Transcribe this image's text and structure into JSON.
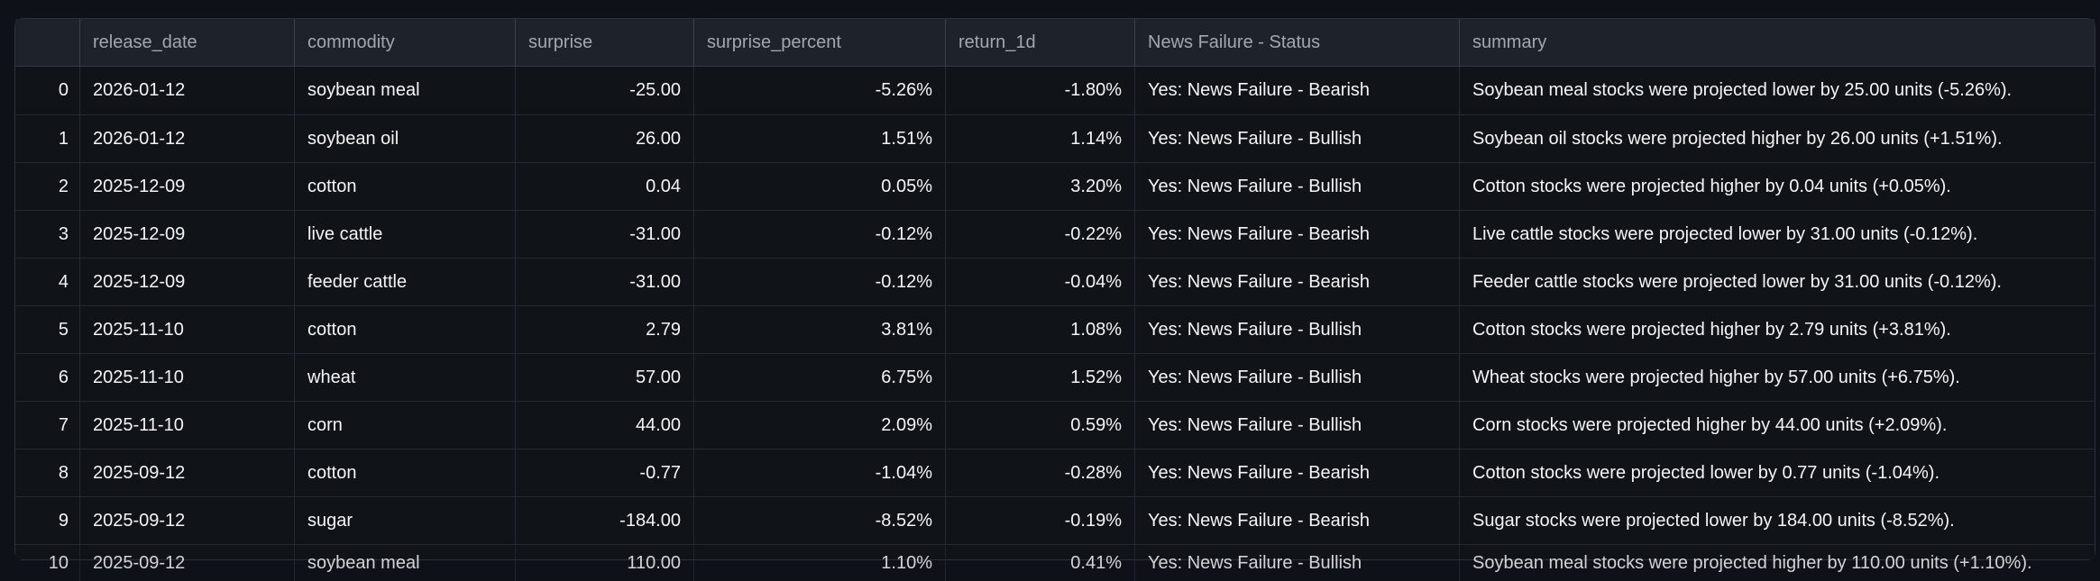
{
  "table": {
    "columns": [
      {
        "id": "idx",
        "label": ""
      },
      {
        "id": "release_date",
        "label": "release_date"
      },
      {
        "id": "commodity",
        "label": "commodity"
      },
      {
        "id": "surprise",
        "label": "surprise"
      },
      {
        "id": "surprise_percent",
        "label": "surprise_percent"
      },
      {
        "id": "return_1d",
        "label": "return_1d"
      },
      {
        "id": "status",
        "label": "News Failure - Status"
      },
      {
        "id": "summary",
        "label": "summary"
      }
    ],
    "rows": [
      {
        "idx": "0",
        "release_date": "2026-01-12",
        "commodity": "soybean meal",
        "surprise": "-25.00",
        "surprise_percent": "-5.26%",
        "return_1d": "-1.80%",
        "status": "Yes: News Failure - Bearish",
        "summary": "Soybean meal stocks were projected lower by 25.00 units (-5.26%)."
      },
      {
        "idx": "1",
        "release_date": "2026-01-12",
        "commodity": "soybean oil",
        "surprise": "26.00",
        "surprise_percent": "1.51%",
        "return_1d": "1.14%",
        "status": "Yes: News Failure - Bullish",
        "summary": "Soybean oil stocks were projected higher by 26.00 units (+1.51%)."
      },
      {
        "idx": "2",
        "release_date": "2025-12-09",
        "commodity": "cotton",
        "surprise": "0.04",
        "surprise_percent": "0.05%",
        "return_1d": "3.20%",
        "status": "Yes: News Failure - Bullish",
        "summary": "Cotton stocks were projected higher by 0.04 units (+0.05%)."
      },
      {
        "idx": "3",
        "release_date": "2025-12-09",
        "commodity": "live cattle",
        "surprise": "-31.00",
        "surprise_percent": "-0.12%",
        "return_1d": "-0.22%",
        "status": "Yes: News Failure - Bearish",
        "summary": "Live cattle stocks were projected lower by 31.00 units (-0.12%)."
      },
      {
        "idx": "4",
        "release_date": "2025-12-09",
        "commodity": "feeder cattle",
        "surprise": "-31.00",
        "surprise_percent": "-0.12%",
        "return_1d": "-0.04%",
        "status": "Yes: News Failure - Bearish",
        "summary": "Feeder cattle stocks were projected lower by 31.00 units (-0.12%)."
      },
      {
        "idx": "5",
        "release_date": "2025-11-10",
        "commodity": "cotton",
        "surprise": "2.79",
        "surprise_percent": "3.81%",
        "return_1d": "1.08%",
        "status": "Yes: News Failure - Bullish",
        "summary": "Cotton stocks were projected higher by 2.79 units (+3.81%)."
      },
      {
        "idx": "6",
        "release_date": "2025-11-10",
        "commodity": "wheat",
        "surprise": "57.00",
        "surprise_percent": "6.75%",
        "return_1d": "1.52%",
        "status": "Yes: News Failure - Bullish",
        "summary": "Wheat stocks were projected higher by 57.00 units (+6.75%)."
      },
      {
        "idx": "7",
        "release_date": "2025-11-10",
        "commodity": "corn",
        "surprise": "44.00",
        "surprise_percent": "2.09%",
        "return_1d": "0.59%",
        "status": "Yes: News Failure - Bullish",
        "summary": "Corn stocks were projected higher by 44.00 units (+2.09%)."
      },
      {
        "idx": "8",
        "release_date": "2025-09-12",
        "commodity": "cotton",
        "surprise": "-0.77",
        "surprise_percent": "-1.04%",
        "return_1d": "-0.28%",
        "status": "Yes: News Failure - Bearish",
        "summary": "Cotton stocks were projected lower by 0.77 units (-1.04%)."
      },
      {
        "idx": "9",
        "release_date": "2025-09-12",
        "commodity": "sugar",
        "surprise": "-184.00",
        "surprise_percent": "-8.52%",
        "return_1d": "-0.19%",
        "status": "Yes: News Failure - Bearish",
        "summary": "Sugar stocks were projected lower by 184.00 units (-8.52%)."
      }
    ],
    "clipped_row": {
      "clipped": true,
      "idx": "10",
      "release_date": "2025-09-12",
      "commodity": "soybean meal",
      "surprise": "110.00",
      "surprise_percent": "1.10%",
      "return_1d": "0.41%",
      "status": "Yes: News Failure - Bullish",
      "summary": "Soybean meal stocks were projected higher by 110.00 units (+1.10%)."
    },
    "theme": {
      "page_bg": "#0e1117",
      "header_bg": "#1d222b",
      "cell_bg": "#101419",
      "row_border": "#252a33",
      "header_border": "#3a404b",
      "outer_border": "#2c313b",
      "cell_text": "#f3f4f6",
      "header_text": "#a2a7b0",
      "index_text": "#9097a1"
    }
  }
}
